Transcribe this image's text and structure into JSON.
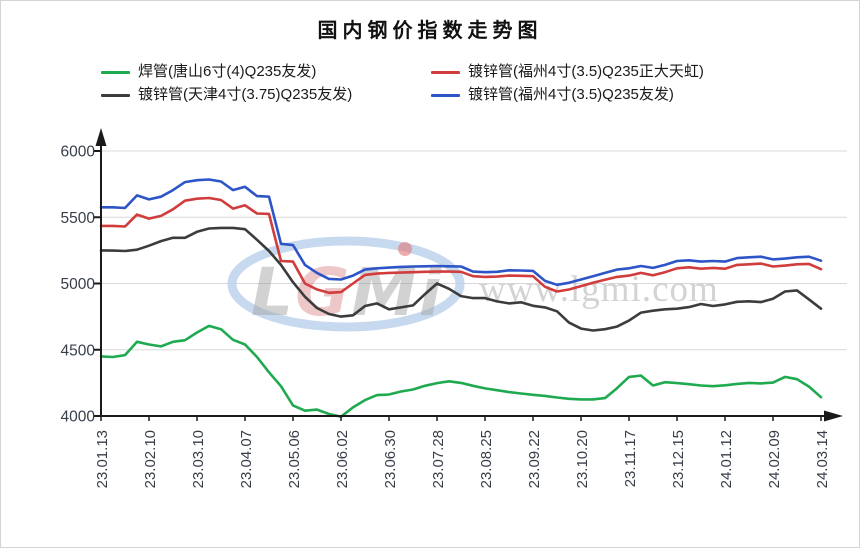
{
  "title": "国内钢价指数走势图",
  "watermark": {
    "logo": "LGMi",
    "url": "www.lgmi.com"
  },
  "axes": {
    "color": "#1a1a1a",
    "label_color": "#373e4a",
    "grid_color": "#d8d8d8"
  },
  "chart_data": {
    "type": "line",
    "title": "国内钢价指数走势图",
    "xlabel": "",
    "ylabel": "",
    "ylim": [
      4000,
      6000
    ],
    "y_ticks": [
      4000,
      4500,
      5000,
      5500,
      6000
    ],
    "grid": true,
    "legend_position": "top",
    "x_labels": [
      "23.01.13",
      "23.02.10",
      "23.03.10",
      "23.04.07",
      "23.05.06",
      "23.06.02",
      "23.06.30",
      "23.07.28",
      "23.08.25",
      "23.09.22",
      "23.10.20",
      "23.11.17",
      "23.12.15",
      "24.01.12",
      "24.02.09",
      "24.03.14"
    ],
    "points_per_label_interval": 4,
    "series": [
      {
        "name": "焊管(唐山6寸(4)Q235友发)",
        "color": "#1faa50",
        "values": [
          4450,
          4445,
          4460,
          4560,
          4540,
          4525,
          4560,
          4572,
          4630,
          4680,
          4655,
          4575,
          4540,
          4445,
          4330,
          4225,
          4080,
          4040,
          4048,
          4015,
          3995,
          4065,
          4120,
          4158,
          4162,
          4185,
          4200,
          4228,
          4248,
          4262,
          4250,
          4228,
          4208,
          4195,
          4180,
          4170,
          4160,
          4152,
          4140,
          4130,
          4125,
          4125,
          4135,
          4210,
          4295,
          4305,
          4230,
          4255,
          4248,
          4240,
          4230,
          4225,
          4232,
          4242,
          4250,
          4246,
          4252,
          4295,
          4278,
          4222,
          4142
        ]
      },
      {
        "name": "镀锌管(天津4寸(3.75)Q235友发)",
        "color": "#3c3c3c",
        "values": [
          5250,
          5248,
          5245,
          5255,
          5285,
          5320,
          5345,
          5345,
          5390,
          5415,
          5420,
          5420,
          5410,
          5330,
          5245,
          5140,
          5010,
          4900,
          4815,
          4770,
          4750,
          4760,
          4830,
          4850,
          4805,
          4820,
          4835,
          4920,
          5000,
          4960,
          4905,
          4890,
          4890,
          4865,
          4850,
          4858,
          4832,
          4820,
          4790,
          4705,
          4660,
          4645,
          4655,
          4675,
          4720,
          4780,
          4795,
          4805,
          4810,
          4822,
          4845,
          4830,
          4842,
          4862,
          4866,
          4860,
          4885,
          4940,
          4948,
          4880,
          4810
        ]
      },
      {
        "name": "镀锌管(福州4寸(3.5)Q235正大天虹)",
        "color": "#d13c3c",
        "values": [
          5435,
          5435,
          5430,
          5520,
          5490,
          5510,
          5560,
          5625,
          5640,
          5645,
          5630,
          5565,
          5590,
          5528,
          5525,
          5170,
          5165,
          5000,
          4955,
          4930,
          4935,
          5000,
          5065,
          5075,
          5080,
          5082,
          5085,
          5088,
          5090,
          5090,
          5088,
          5055,
          5050,
          5052,
          5060,
          5058,
          5055,
          4975,
          4940,
          4955,
          4980,
          5005,
          5028,
          5050,
          5060,
          5080,
          5062,
          5085,
          5115,
          5122,
          5112,
          5118,
          5112,
          5140,
          5145,
          5150,
          5128,
          5135,
          5145,
          5148,
          5108
        ]
      },
      {
        "name": "镀锌管(福州4寸(3.5)Q235友发)",
        "color": "#2d55c8",
        "values": [
          5575,
          5575,
          5570,
          5665,
          5635,
          5655,
          5705,
          5765,
          5780,
          5785,
          5770,
          5705,
          5730,
          5660,
          5655,
          5300,
          5290,
          5140,
          5080,
          5035,
          5030,
          5060,
          5105,
          5115,
          5120,
          5125,
          5128,
          5130,
          5132,
          5130,
          5128,
          5090,
          5085,
          5088,
          5100,
          5098,
          5095,
          5020,
          4990,
          5005,
          5030,
          5055,
          5080,
          5105,
          5115,
          5132,
          5118,
          5140,
          5170,
          5175,
          5165,
          5170,
          5165,
          5192,
          5198,
          5202,
          5182,
          5188,
          5198,
          5202,
          5172
        ]
      }
    ],
    "legend_rows": [
      [
        0,
        2
      ],
      [
        1,
        3
      ]
    ]
  }
}
